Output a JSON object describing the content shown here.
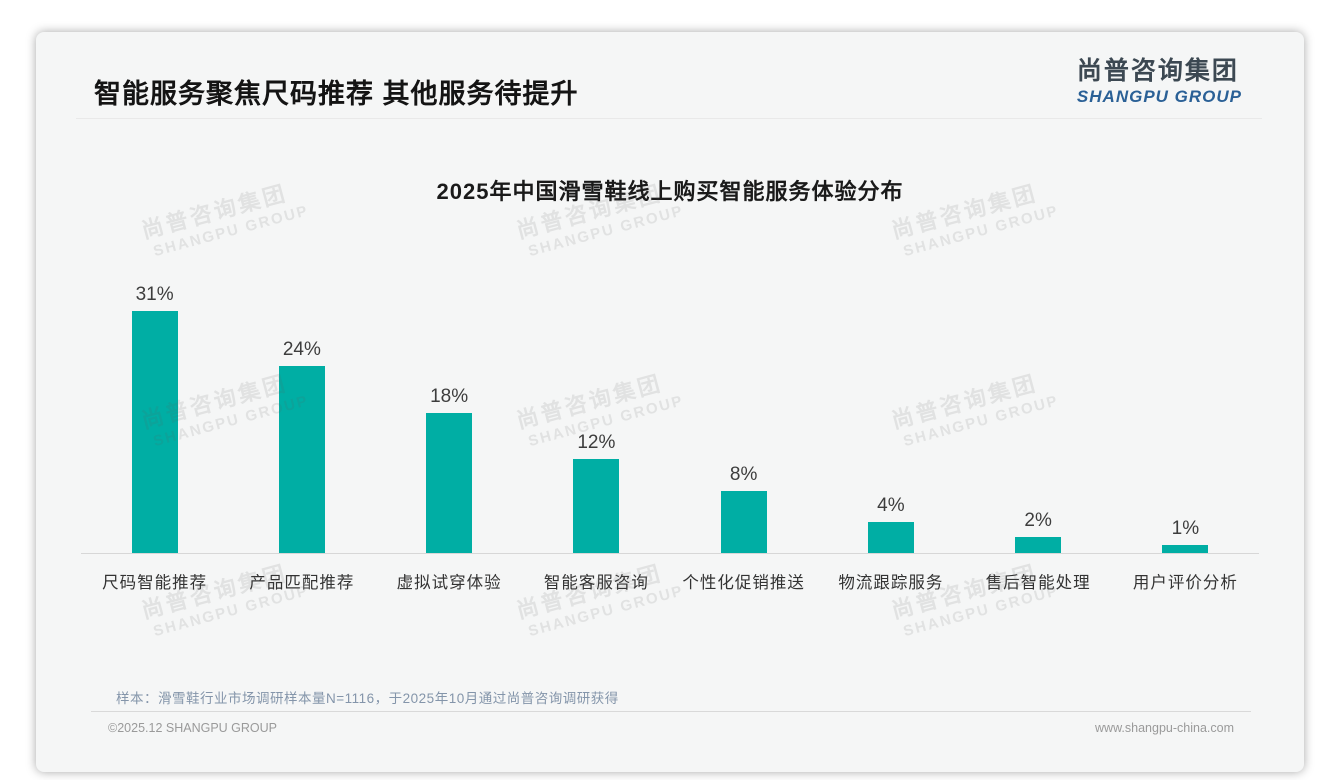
{
  "page": {
    "title": "智能服务聚焦尺码推荐 其他服务待提升",
    "logo": {
      "cn": "尚普咨询集团",
      "en": "SHANGPU GROUP"
    },
    "note": "样本：滑雪鞋行业市场调研样本量N=1116，于2025年10月通过尚普咨询调研获得",
    "footer": {
      "left": "©2025.12 SHANGPU GROUP",
      "right": "www.shangpu-china.com"
    },
    "watermark": {
      "cn": "尚普咨询集团",
      "en": "SHANGPU GROUP"
    },
    "colors": {
      "bar": "#00aea4",
      "logo_blue": "#2a6096",
      "note_text": "#8495aa"
    }
  },
  "chart_data": {
    "type": "bar",
    "title": "2025年中国滑雪鞋线上购买智能服务体验分布",
    "categories": [
      "尺码智能推荐",
      "产品匹配推荐",
      "虚拟试穿体验",
      "智能客服咨询",
      "个性化促销推送",
      "物流跟踪服务",
      "售后智能处理",
      "用户评价分析"
    ],
    "values": [
      31,
      24,
      18,
      12,
      8,
      4,
      2,
      1
    ],
    "unit": "%",
    "data_labels": true,
    "grid": false,
    "legend": "none",
    "ylim": [
      0,
      34
    ],
    "bar_color": "#00aea4",
    "xlabel": "",
    "ylabel": ""
  }
}
